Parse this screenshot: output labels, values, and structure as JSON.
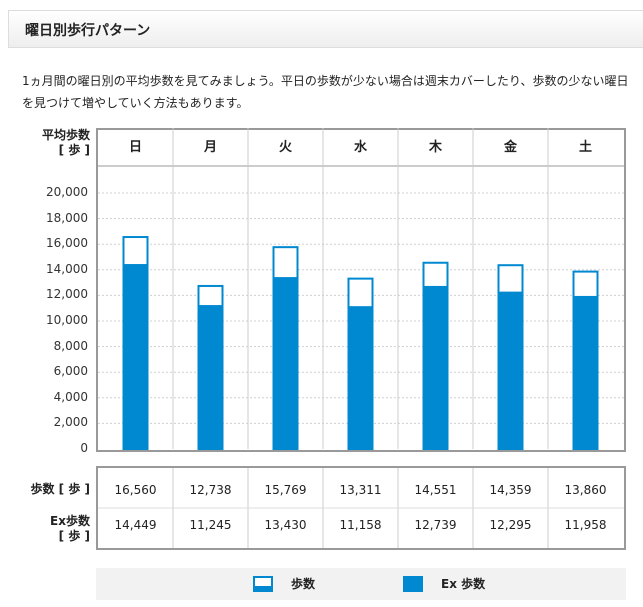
{
  "header": {
    "title": "曜日別歩行パターン"
  },
  "intro": {
    "text": "1ヵ月間の曜日別の平均歩数を見てみましょう。平日の歩数が少ない場合は週末カバーしたり、歩数の少ない曜日を見つけて増やしていく方法もあります。"
  },
  "chart": {
    "ylabel_line1": "平均歩数",
    "ylabel_line2": "[ 歩 ]"
  },
  "table": {
    "row1_label": "歩数 [ 歩 ]",
    "row2_label_line1": "Ex歩数",
    "row2_label_line2": "[ 歩 ]",
    "steps_text": [
      "16,560",
      "12,738",
      "15,769",
      "13,311",
      "14,551",
      "14,359",
      "13,860"
    ],
    "ex_text": [
      "14,449",
      "11,245",
      "13,430",
      "11,158",
      "12,739",
      "12,295",
      "11,958"
    ]
  },
  "legend": {
    "steps_label": "歩数",
    "ex_label": "Ex 歩数"
  },
  "colors": {
    "ex": "#0088d1",
    "steps_fill": "#ffffff",
    "outline": "#0088d1",
    "grid": "#d0d0d0",
    "border": "#999999"
  },
  "chart_data": {
    "type": "bar",
    "categories": [
      "日",
      "月",
      "火",
      "水",
      "木",
      "金",
      "土"
    ],
    "series": [
      {
        "name": "歩数",
        "values": [
          16560,
          12738,
          15769,
          13311,
          14551,
          14359,
          13860
        ]
      },
      {
        "name": "Ex 歩数",
        "values": [
          14449,
          11245,
          13430,
          11158,
          12739,
          12295,
          11958
        ]
      }
    ],
    "ylabel": "平均歩数 [ 歩 ]",
    "yticks": [
      "0",
      "2,000",
      "4,000",
      "6,000",
      "8,000",
      "10,000",
      "12,000",
      "14,000",
      "16,000",
      "18,000",
      "20,000"
    ],
    "ylim": [
      0,
      20000
    ],
    "grid": true,
    "legend_position": "bottom"
  }
}
